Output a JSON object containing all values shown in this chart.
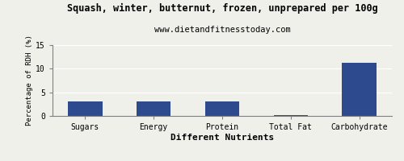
{
  "title": "Squash, winter, butternut, frozen, unprepared per 100g",
  "subtitle": "www.dietandfitnesstoday.com",
  "xlabel": "Different Nutrients",
  "ylabel": "Percentage of RDH (%)",
  "categories": [
    "Sugars",
    "Energy",
    "Protein",
    "Total Fat",
    "Carbohydrate"
  ],
  "values": [
    3.0,
    3.0,
    3.0,
    0.1,
    11.3
  ],
  "bar_color": "#2e4a8e",
  "ylim": [
    0,
    15
  ],
  "yticks": [
    0,
    5,
    10,
    15
  ],
  "background_color": "#f0f0eb",
  "title_fontsize": 8.5,
  "subtitle_fontsize": 7.5,
  "xlabel_fontsize": 8,
  "ylabel_fontsize": 6.5,
  "tick_fontsize": 7
}
